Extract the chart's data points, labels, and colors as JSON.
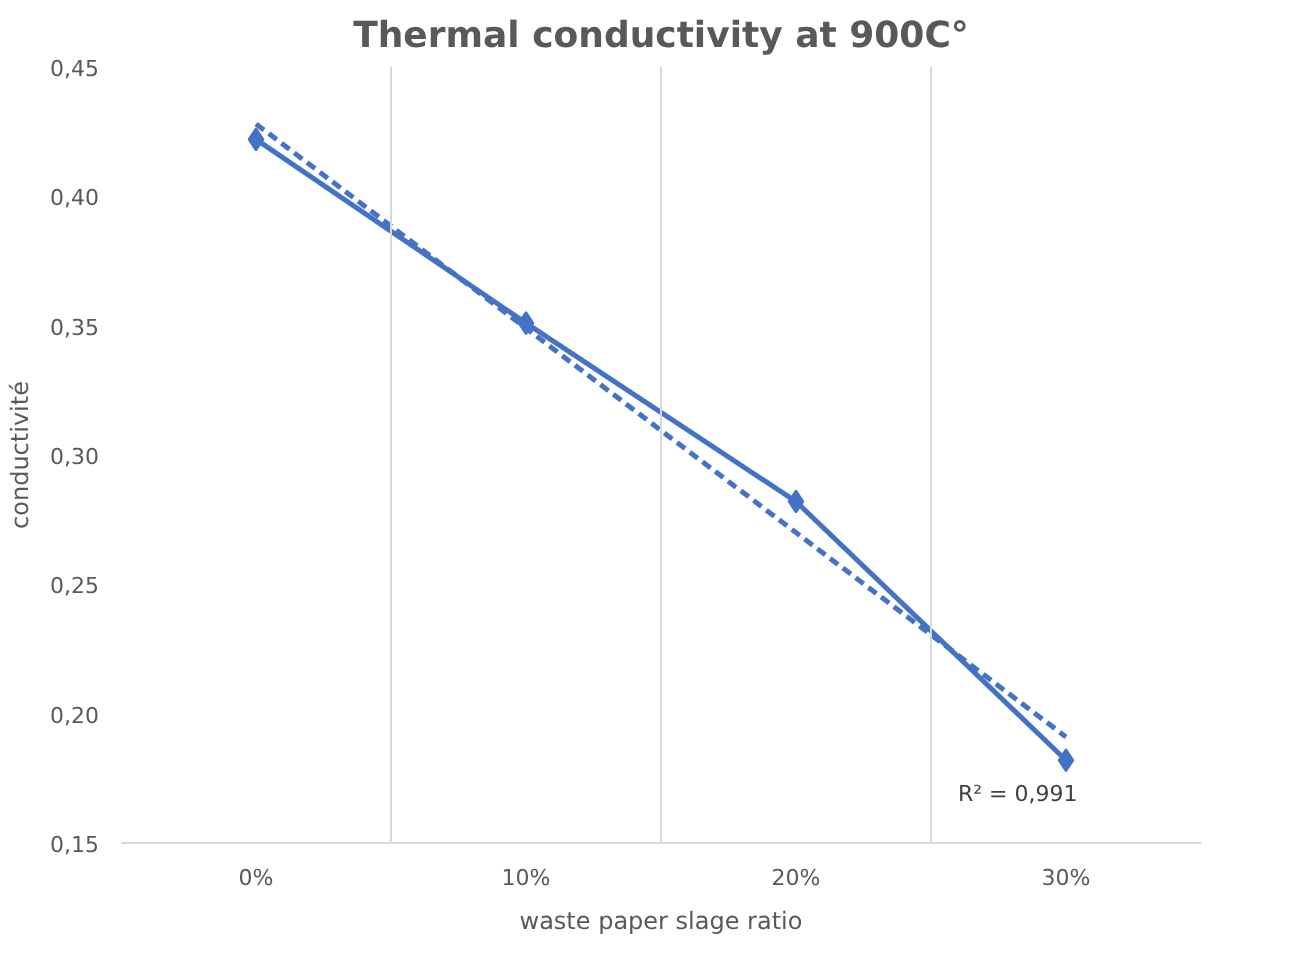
{
  "chart_data": {
    "type": "line",
    "title": "Thermal conductivity at 900C°",
    "xlabel": "waste paper slage ratio",
    "ylabel": "conductivité",
    "categories": [
      "0%",
      "10%",
      "20%",
      "30%"
    ],
    "series": [
      {
        "color": "#4472c4",
        "values": [
          0.422,
          0.351,
          0.282,
          0.182
        ],
        "marker": "diamond",
        "line_style": "solid"
      },
      {
        "color": "#4472c4",
        "values": [
          0.428,
          0.349,
          0.27,
          0.191
        ],
        "marker": "none",
        "line_style": "dashed"
      }
    ],
    "ylim": [
      0.15,
      0.45
    ],
    "yticks": [
      {
        "value": 0.15,
        "label": "0,15"
      },
      {
        "value": 0.2,
        "label": "0,20"
      },
      {
        "value": 0.25,
        "label": "0,25"
      },
      {
        "value": 0.3,
        "label": "0,30"
      },
      {
        "value": 0.35,
        "label": "0,35"
      },
      {
        "value": 0.4,
        "label": "0,40"
      },
      {
        "value": 0.45,
        "label": "0,45"
      }
    ],
    "grid": "x",
    "annotations": [
      "R² = 0,991"
    ]
  }
}
